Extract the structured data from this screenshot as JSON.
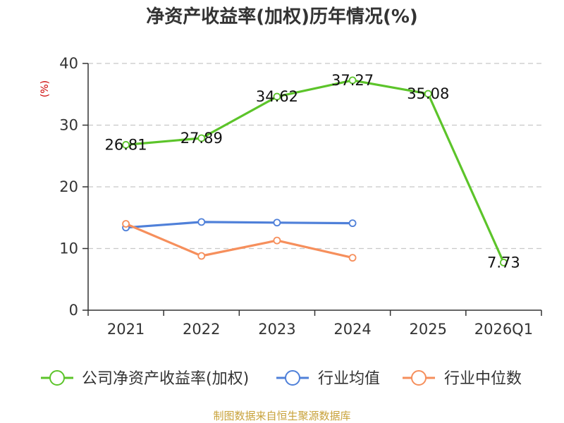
{
  "chart_data": {
    "type": "line",
    "title": "净资产收益率(加权)历年情况(%)",
    "ylabel": "(%)",
    "xlabel": "",
    "categories": [
      "2021",
      "2022",
      "2023",
      "2024",
      "2025",
      "2026Q1"
    ],
    "ylim": [
      0,
      40
    ],
    "yticks": [
      0,
      10,
      20,
      30,
      40
    ],
    "grid": true,
    "legend_position": "bottom",
    "series": [
      {
        "name": "公司净资产收益率(加权)",
        "color": "#5cc42a",
        "values": [
          26.81,
          27.89,
          34.62,
          37.27,
          35.08,
          7.73
        ],
        "labels": [
          "26.81",
          "27.89",
          "34.62",
          "37.27",
          "35.08",
          "7.73"
        ],
        "show_labels": true
      },
      {
        "name": "行业均值",
        "color": "#4f80d9",
        "values": [
          13.4,
          14.3,
          14.2,
          14.1,
          null,
          null
        ],
        "show_labels": false
      },
      {
        "name": "行业中位数",
        "color": "#f68f5c",
        "values": [
          14.0,
          8.8,
          11.3,
          8.5,
          null,
          null
        ],
        "show_labels": false
      }
    ],
    "source": "制图数据来自恒生聚源数据库"
  }
}
